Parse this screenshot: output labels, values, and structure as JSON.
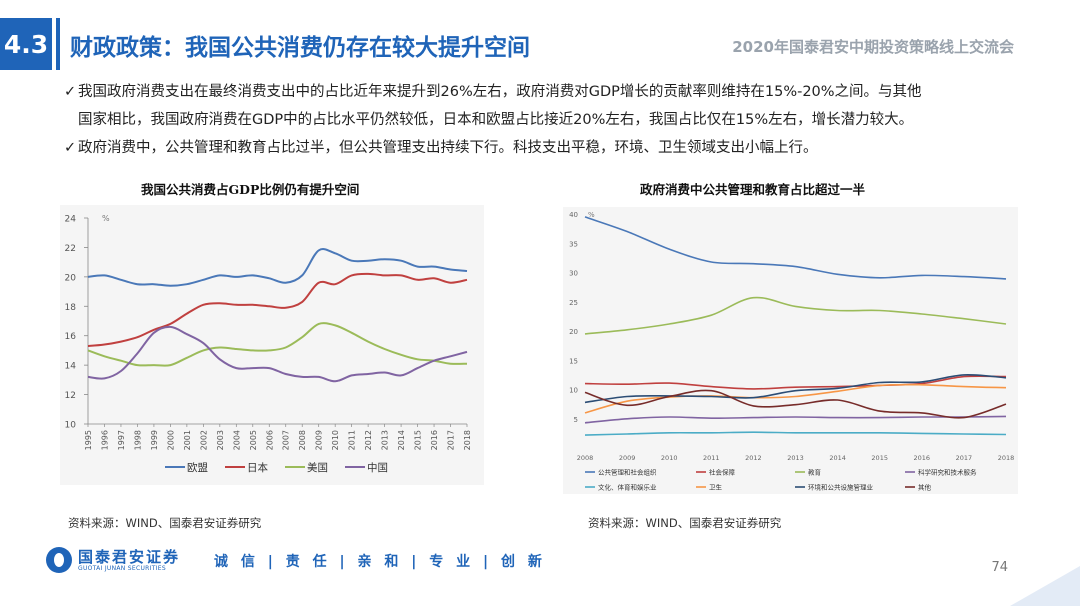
{
  "header": {
    "section_number": "4.3",
    "title": "财政政策：我国公共消费仍存在较大提升空间",
    "right_text": "2020年国泰君安中期投资策略线上交流会"
  },
  "bullets": {
    "check": "✓",
    "b1_line1": "我国政府消费支出在最终消费支出中的占比近年来提升到26%左右，政府消费对GDP增长的贡献率则维持在15%-20%之间。与其他",
    "b1_line2": "国家相比，我国政府消费在GDP中的占比水平仍然较低，日本和欧盟占比接近20%左右，我国占比仅在15%左右，增长潜力较大。",
    "b2": "政府消费中，公共管理和教育占比过半，但公共管理支出持续下行。科技支出平稳，环境、卫生领域支出小幅上行。"
  },
  "chart_data": [
    {
      "type": "line",
      "title": "我国公共消费占GDP比例仍有提升空间",
      "unit": "%",
      "x": [
        "1995",
        "1996",
        "1997",
        "1998",
        "1999",
        "2000",
        "2001",
        "2002",
        "2003",
        "2004",
        "2005",
        "2006",
        "2007",
        "2008",
        "2009",
        "2010",
        "2011",
        "2012",
        "2013",
        "2014",
        "2015",
        "2016",
        "2017",
        "2018"
      ],
      "ylim": [
        10,
        24
      ],
      "yticks": [
        "10",
        "12",
        "14",
        "16",
        "18",
        "20",
        "22",
        "24"
      ],
      "grid": false,
      "legend": "bottom",
      "series": [
        {
          "name": "欧盟",
          "color": "#4a78b8",
          "values": [
            20.0,
            20.1,
            19.8,
            19.5,
            19.5,
            19.4,
            19.5,
            19.8,
            20.1,
            20.0,
            20.1,
            19.9,
            19.6,
            20.1,
            21.8,
            21.6,
            21.1,
            21.1,
            21.2,
            21.1,
            20.7,
            20.7,
            20.5,
            20.4
          ]
        },
        {
          "name": "日本",
          "color": "#c0403f",
          "values": [
            15.3,
            15.4,
            15.6,
            15.9,
            16.4,
            16.8,
            17.5,
            18.1,
            18.2,
            18.1,
            18.1,
            18.0,
            17.9,
            18.3,
            19.6,
            19.5,
            20.1,
            20.2,
            20.1,
            20.1,
            19.8,
            19.9,
            19.6,
            19.8
          ]
        },
        {
          "name": "美国",
          "color": "#9bbb59",
          "values": [
            15.0,
            14.6,
            14.3,
            14.0,
            14.0,
            14.0,
            14.5,
            15.0,
            15.2,
            15.1,
            15.0,
            15.0,
            15.2,
            15.9,
            16.8,
            16.7,
            16.2,
            15.6,
            15.1,
            14.7,
            14.4,
            14.3,
            14.1,
            14.1
          ]
        },
        {
          "name": "中国",
          "color": "#8064a2",
          "values": [
            13.2,
            13.1,
            13.6,
            14.8,
            16.2,
            16.6,
            16.1,
            15.5,
            14.4,
            13.8,
            13.8,
            13.8,
            13.4,
            13.2,
            13.2,
            12.9,
            13.3,
            13.4,
            13.5,
            13.3,
            13.8,
            14.3,
            14.6,
            14.9
          ]
        }
      ]
    },
    {
      "type": "line",
      "title": "政府消费中公共管理和教育占比超过一半",
      "unit": "%",
      "x": [
        "2008",
        "2009",
        "2010",
        "2011",
        "2012",
        "2013",
        "2014",
        "2015",
        "2016",
        "2017",
        "2018"
      ],
      "ylim": [
        0,
        40
      ],
      "yticks": [
        "5",
        "10",
        "15",
        "20",
        "25",
        "30",
        "35",
        "40"
      ],
      "grid": false,
      "legend": "bottom",
      "series": [
        {
          "name": "公共管理和社会组织",
          "color": "#4a78b8",
          "values": [
            39.5,
            37.0,
            34.0,
            31.8,
            31.5,
            31.0,
            29.7,
            29.1,
            29.5,
            29.3,
            28.9
          ]
        },
        {
          "name": "社会保障",
          "color": "#c0403f",
          "values": [
            11.0,
            10.9,
            11.1,
            10.5,
            10.1,
            10.4,
            10.5,
            10.7,
            11.0,
            12.2,
            12.2
          ]
        },
        {
          "name": "教育",
          "color": "#9bbb59",
          "values": [
            19.5,
            20.2,
            21.2,
            22.7,
            25.7,
            24.2,
            23.5,
            23.5,
            22.9,
            22.1,
            21.2
          ]
        },
        {
          "name": "科学研究和技术服务",
          "color": "#8064a2",
          "values": [
            4.3,
            5.0,
            5.3,
            5.1,
            5.2,
            5.3,
            5.2,
            5.2,
            5.3,
            5.3,
            5.4
          ]
        },
        {
          "name": "文化、体育和娱乐业",
          "color": "#4bacc6",
          "values": [
            2.2,
            2.4,
            2.6,
            2.6,
            2.7,
            2.6,
            2.6,
            2.6,
            2.5,
            2.4,
            2.3
          ]
        },
        {
          "name": "卫生",
          "color": "#f79646",
          "values": [
            6.0,
            8.0,
            8.7,
            8.9,
            8.6,
            8.8,
            9.7,
            10.7,
            10.8,
            10.5,
            10.3
          ]
        },
        {
          "name": "环境和公共设施管理业",
          "color": "#2c4d75",
          "values": [
            7.8,
            8.8,
            8.9,
            8.8,
            8.6,
            9.8,
            10.2,
            11.2,
            11.3,
            12.5,
            12.0
          ]
        },
        {
          "name": "其他",
          "color": "#772c2a",
          "values": [
            9.5,
            7.3,
            8.8,
            9.8,
            7.2,
            7.4,
            8.2,
            6.3,
            6.0,
            5.2,
            7.5
          ]
        }
      ]
    }
  ],
  "sources": {
    "left": "资料来源：WIND、国泰君安证券研究",
    "right": "资料来源：WIND、国泰君安证券研究"
  },
  "footer": {
    "logo_cn": "国泰君安证券",
    "logo_en": "GUOTAI JUNAN SECURITIES",
    "motto": "诚 信 | 责 任 | 亲 和 | 专 业 | 创 新",
    "page_number": "74"
  }
}
